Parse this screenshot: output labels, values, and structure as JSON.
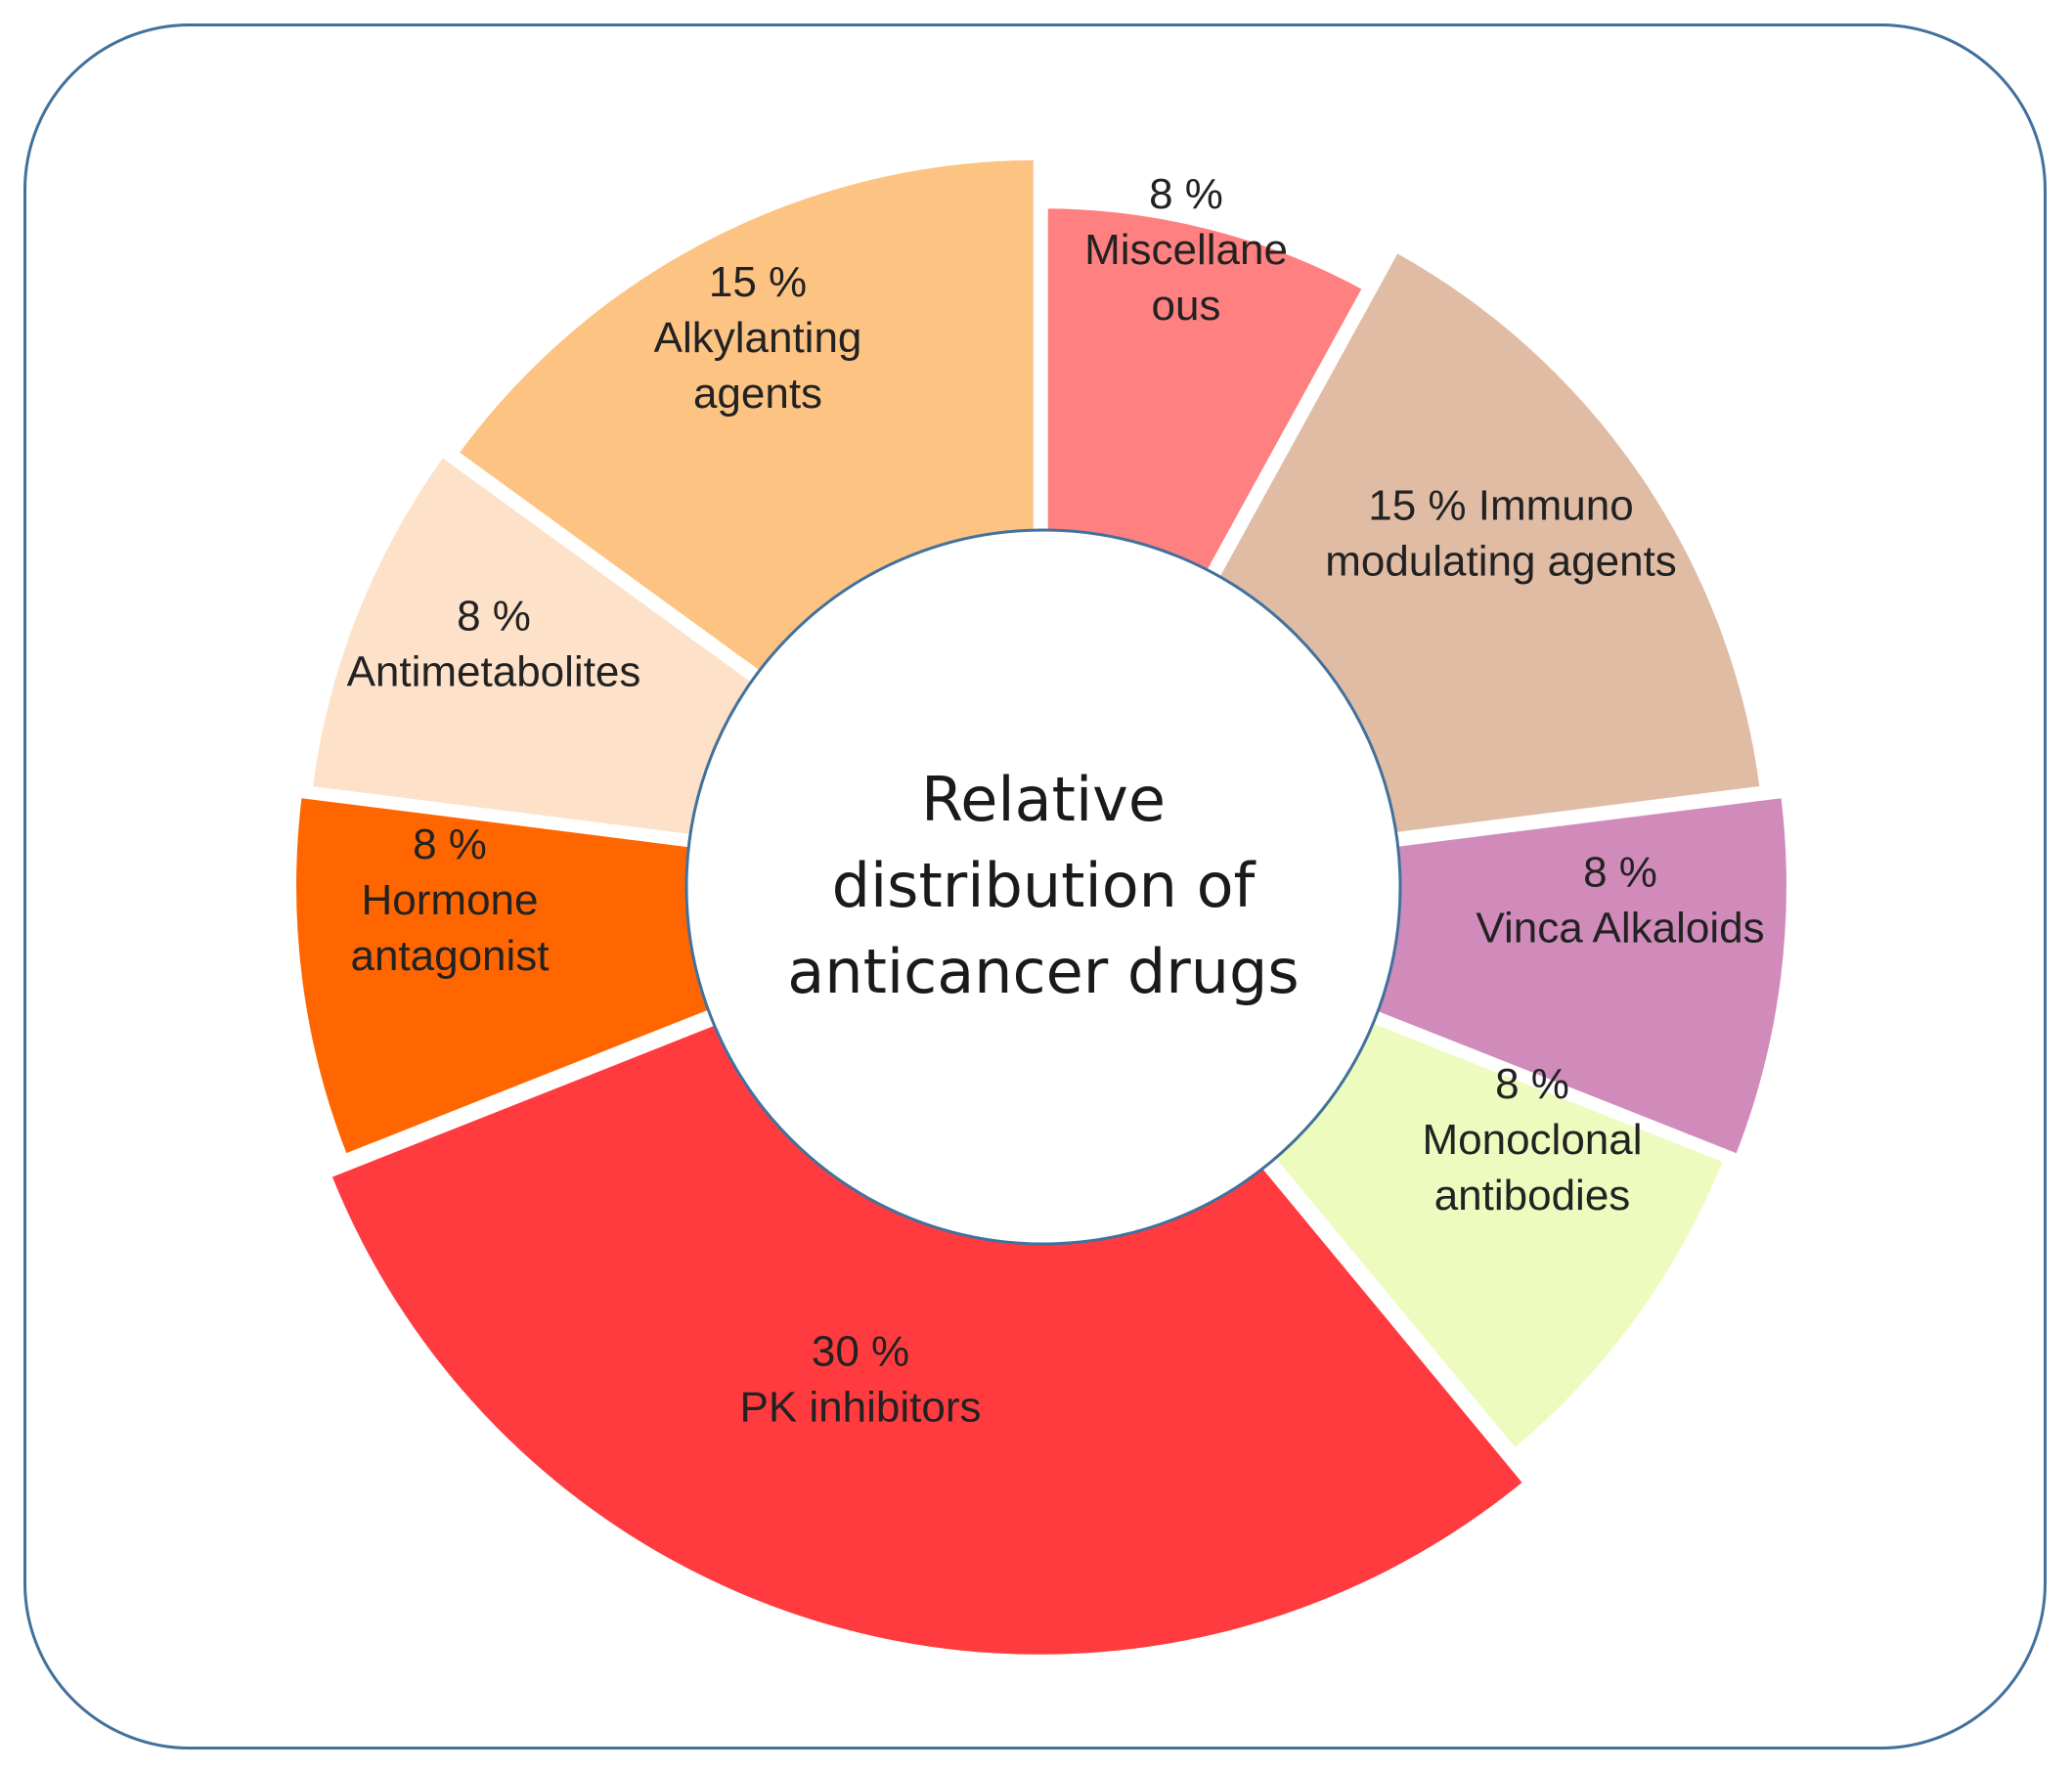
{
  "chart_data": {
    "type": "pie",
    "title": "Relative distribution of anticancer drugs",
    "center_title_lines": [
      "Relative",
      "distribution of",
      "anticancer drugs"
    ],
    "unit": "%",
    "slices": [
      {
        "category": "Miscellaneous",
        "value": 8,
        "color": "#ff8080",
        "label_lines": [
          "8 %",
          "Miscellane",
          "ous"
        ]
      },
      {
        "category": "Immuno modulating agents",
        "value": 15,
        "color": "#e0bca5",
        "label_lines": [
          "15 %  Immuno",
          "modulating agents"
        ]
      },
      {
        "category": "Vinca Alkaloids",
        "value": 8,
        "color": "#d18bbb",
        "label_lines": [
          "8 %",
          "Vinca Alkaloids"
        ]
      },
      {
        "category": "Monoclonal antibodies",
        "value": 8,
        "color": "#eefbbe",
        "label_lines": [
          "8 %",
          "Monoclonal",
          "antibodies"
        ]
      },
      {
        "category": "PK inhibitors",
        "value": 30,
        "color": "#ff3b3f",
        "label_lines": [
          "30 %",
          "PK inhibitors"
        ]
      },
      {
        "category": "Hormone antagonist",
        "value": 8,
        "color": "#ff6600",
        "label_lines": [
          "8 %",
          "Hormone",
          "antagonist"
        ]
      },
      {
        "category": "Antimetabolites",
        "value": 8,
        "color": "#fde1c8",
        "label_lines": [
          "8 %",
          "Antimetabolites"
        ]
      },
      {
        "category": "Alkylanting agents",
        "value": 15,
        "color": "#fdc383",
        "label_lines": [
          "15 %",
          "Alkylanting",
          "agents"
        ]
      }
    ],
    "start_angle_deg": 0,
    "direction": "clockwise",
    "legend": "none",
    "grid": false
  }
}
